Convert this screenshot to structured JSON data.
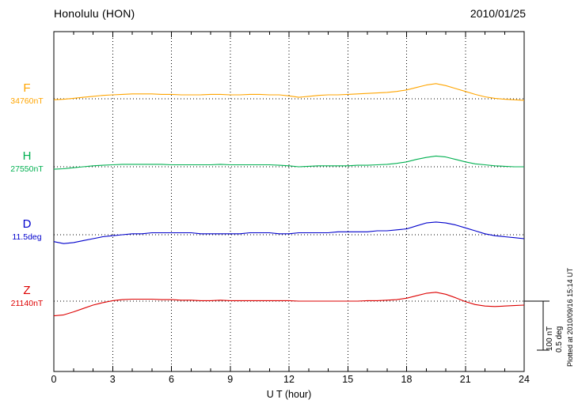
{
  "chart_data": {
    "type": "line",
    "title": "Honolulu (HON)",
    "date": "2010/01/25",
    "xlabel": "U T (hour)",
    "xlim": [
      0,
      24
    ],
    "x_tick_hours": [
      0,
      3,
      6,
      9,
      12,
      15,
      18,
      21,
      24
    ],
    "grid": "dotted vertical every 3 h, dotted horizontal baseline per trace",
    "scale_bar": {
      "nt": "100 nT",
      "deg": "0.5 deg",
      "nT_per_bar": 100,
      "deg_per_bar": 0.5
    },
    "plotted_at": "Plotted at 2010/09/16 15:14 UT",
    "x": [
      0,
      0.5,
      1,
      1.5,
      2,
      2.5,
      3,
      3.5,
      4,
      4.5,
      5,
      5.5,
      6,
      6.5,
      7,
      7.5,
      8,
      8.5,
      9,
      9.5,
      10,
      10.5,
      11,
      11.5,
      12,
      12.5,
      13,
      13.5,
      14,
      14.5,
      15,
      15.5,
      16,
      16.5,
      17,
      17.5,
      18,
      18.5,
      19,
      19.5,
      20,
      20.5,
      21,
      21.5,
      22,
      22.5,
      23,
      23.5,
      24
    ],
    "series": [
      {
        "name": "F",
        "unit": "nT",
        "baseline": 34760,
        "baseline_label": "34760nT",
        "color": "#FFA500",
        "values": [
          -2,
          -1,
          1,
          3,
          5,
          7,
          8,
          9,
          10,
          10,
          10,
          9,
          9,
          8,
          8,
          8,
          9,
          9,
          8,
          8,
          9,
          9,
          8,
          8,
          6,
          3,
          5,
          7,
          8,
          8,
          9,
          10,
          11,
          12,
          13,
          15,
          18,
          23,
          28,
          31,
          27,
          21,
          15,
          9,
          4,
          1,
          -1,
          -2,
          -3
        ]
      },
      {
        "name": "H",
        "unit": "nT",
        "baseline": 27550,
        "baseline_label": "27550nT",
        "color": "#00B050",
        "values": [
          -5,
          -4,
          -2,
          0,
          2,
          3,
          4,
          5,
          5,
          5,
          5,
          5,
          4,
          4,
          4,
          4,
          4,
          5,
          4,
          4,
          4,
          4,
          4,
          3,
          2,
          0,
          1,
          2,
          2,
          2,
          2,
          3,
          3,
          4,
          5,
          7,
          10,
          15,
          19,
          22,
          20,
          15,
          10,
          6,
          4,
          2,
          1,
          0,
          0
        ]
      },
      {
        "name": "D",
        "unit": "deg",
        "baseline": 11.5,
        "baseline_label": "11.5deg",
        "color": "#0000CC",
        "values": [
          -0.07,
          -0.09,
          -0.08,
          -0.06,
          -0.04,
          -0.02,
          -0.01,
          0,
          0.01,
          0.01,
          0.02,
          0.02,
          0.02,
          0.02,
          0.02,
          0.01,
          0.01,
          0.01,
          0.01,
          0.01,
          0.02,
          0.02,
          0.02,
          0.01,
          0.01,
          0.02,
          0.02,
          0.02,
          0.02,
          0.03,
          0.03,
          0.03,
          0.03,
          0.04,
          0.04,
          0.05,
          0.06,
          0.09,
          0.12,
          0.13,
          0.12,
          0.1,
          0.07,
          0.04,
          0.01,
          -0.01,
          -0.02,
          -0.03,
          -0.04
        ]
      },
      {
        "name": "Z",
        "unit": "nT",
        "baseline": 21140,
        "baseline_label": "21140nT",
        "color": "#DD0000",
        "values": [
          -30,
          -28,
          -22,
          -15,
          -8,
          -3,
          1,
          3,
          4,
          4,
          4,
          3,
          3,
          2,
          2,
          1,
          1,
          2,
          1,
          1,
          1,
          1,
          1,
          1,
          1,
          0,
          0,
          0,
          0,
          0,
          0,
          0,
          1,
          1,
          2,
          3,
          6,
          11,
          16,
          18,
          14,
          7,
          -1,
          -7,
          -10,
          -11,
          -10,
          -9,
          -8
        ]
      }
    ]
  }
}
